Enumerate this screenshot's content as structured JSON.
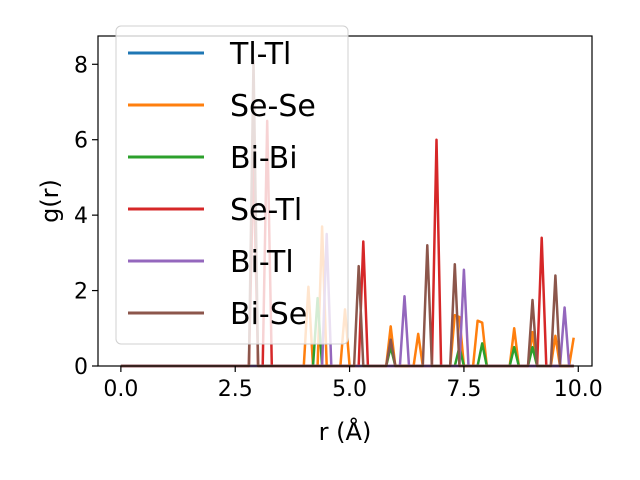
{
  "chart_data": {
    "type": "line",
    "title": "",
    "xlabel": "r (Å)",
    "ylabel": "g(r)",
    "xlim": [
      -0.5,
      10.3
    ],
    "ylim": [
      0,
      8.75
    ],
    "xticks": [
      0.0,
      2.5,
      5.0,
      7.5,
      10.0
    ],
    "xtick_labels": [
      "0.0",
      "2.5",
      "5.0",
      "7.5",
      "10.0"
    ],
    "yticks": [
      0,
      2,
      4,
      6,
      8
    ],
    "ytick_labels": [
      "0",
      "2",
      "4",
      "6",
      "8"
    ],
    "grid": false,
    "legend_position": "upper-left",
    "series": [
      {
        "name": "Tl-Tl",
        "color": "#1f77b4",
        "points": [
          [
            0,
            0
          ],
          [
            9.9,
            0
          ]
        ]
      },
      {
        "name": "Se-Se",
        "color": "#ff7f0e",
        "points": [
          [
            0,
            0
          ],
          [
            4.0,
            0
          ],
          [
            4.1,
            2.1
          ],
          [
            4.2,
            0
          ],
          [
            4.3,
            0
          ],
          [
            4.4,
            3.7
          ],
          [
            4.5,
            0
          ],
          [
            4.8,
            0
          ],
          [
            4.9,
            1.5
          ],
          [
            5.0,
            0
          ],
          [
            5.8,
            0
          ],
          [
            5.9,
            1.05
          ],
          [
            6.0,
            0
          ],
          [
            6.4,
            0
          ],
          [
            6.5,
            0.85
          ],
          [
            6.6,
            0
          ],
          [
            7.2,
            0
          ],
          [
            7.3,
            1.35
          ],
          [
            7.4,
            1.3
          ],
          [
            7.5,
            0
          ],
          [
            7.7,
            0
          ],
          [
            7.8,
            1.2
          ],
          [
            7.9,
            1.15
          ],
          [
            8.0,
            0
          ],
          [
            8.5,
            0
          ],
          [
            8.6,
            1.0
          ],
          [
            8.7,
            0
          ],
          [
            8.9,
            0
          ],
          [
            9.0,
            0.9
          ],
          [
            9.1,
            0
          ],
          [
            9.4,
            0
          ],
          [
            9.5,
            0.8
          ],
          [
            9.6,
            0
          ],
          [
            9.8,
            0
          ],
          [
            9.9,
            0.75
          ]
        ]
      },
      {
        "name": "Bi-Bi",
        "color": "#2ca02c",
        "points": [
          [
            0,
            0
          ],
          [
            4.2,
            0
          ],
          [
            4.3,
            1.8
          ],
          [
            4.4,
            0
          ],
          [
            5.8,
            0
          ],
          [
            5.9,
            0.5
          ],
          [
            6.0,
            0
          ],
          [
            7.3,
            0
          ],
          [
            7.4,
            0.5
          ],
          [
            7.5,
            0
          ],
          [
            7.8,
            0
          ],
          [
            7.9,
            0.6
          ],
          [
            8.0,
            0
          ],
          [
            8.5,
            0
          ],
          [
            8.6,
            0.5
          ],
          [
            8.7,
            0
          ],
          [
            8.9,
            0
          ],
          [
            9.0,
            0.5
          ],
          [
            9.1,
            0
          ],
          [
            9.9,
            0
          ]
        ]
      },
      {
        "name": "Se-Tl",
        "color": "#d62728",
        "points": [
          [
            0,
            0
          ],
          [
            2.8,
            0
          ],
          [
            2.9,
            5.5
          ],
          [
            3.0,
            0
          ],
          [
            3.1,
            0
          ],
          [
            3.2,
            6.5
          ],
          [
            3.3,
            0
          ],
          [
            5.2,
            0
          ],
          [
            5.3,
            3.3
          ],
          [
            5.4,
            0
          ],
          [
            6.8,
            0
          ],
          [
            6.9,
            6.0
          ],
          [
            7.0,
            0
          ],
          [
            9.1,
            0
          ],
          [
            9.2,
            3.4
          ],
          [
            9.3,
            0
          ],
          [
            9.9,
            0
          ]
        ]
      },
      {
        "name": "Bi-Tl",
        "color": "#9467bd",
        "points": [
          [
            0,
            0
          ],
          [
            4.4,
            0
          ],
          [
            4.5,
            3.5
          ],
          [
            4.6,
            0
          ],
          [
            6.1,
            0
          ],
          [
            6.2,
            1.85
          ],
          [
            6.3,
            0
          ],
          [
            7.4,
            0
          ],
          [
            7.5,
            2.55
          ],
          [
            7.6,
            0
          ],
          [
            9.6,
            0
          ],
          [
            9.7,
            1.55
          ],
          [
            9.8,
            0
          ],
          [
            9.9,
            0
          ]
        ]
      },
      {
        "name": "Bi-Se",
        "color": "#8c564b",
        "points": [
          [
            0,
            0
          ],
          [
            2.8,
            0
          ],
          [
            2.9,
            8.1
          ],
          [
            3.0,
            0
          ],
          [
            5.1,
            0
          ],
          [
            5.2,
            2.65
          ],
          [
            5.3,
            0
          ],
          [
            5.8,
            0
          ],
          [
            5.9,
            0.7
          ],
          [
            6.0,
            0
          ],
          [
            6.6,
            0
          ],
          [
            6.7,
            3.2
          ],
          [
            6.8,
            0
          ],
          [
            7.2,
            0
          ],
          [
            7.3,
            2.7
          ],
          [
            7.4,
            0
          ],
          [
            8.9,
            0
          ],
          [
            9.0,
            1.75
          ],
          [
            9.1,
            0
          ],
          [
            9.4,
            0
          ],
          [
            9.5,
            2.4
          ],
          [
            9.6,
            0
          ],
          [
            9.9,
            0
          ]
        ]
      }
    ]
  }
}
